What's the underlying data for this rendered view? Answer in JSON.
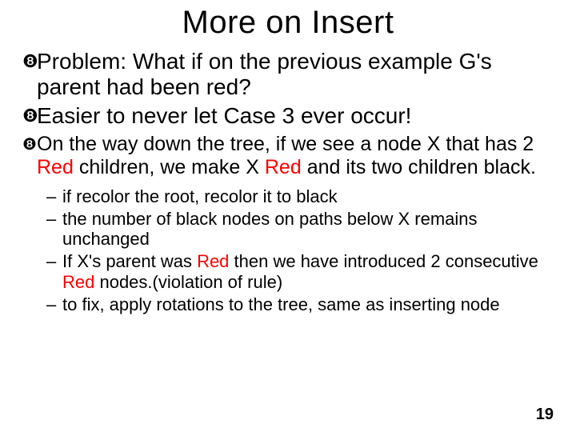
{
  "title": "More on Insert",
  "bullets_large": [
    {
      "segments": [
        {
          "t": "Problem: What if on the previous example G's parent had been red?"
        }
      ]
    },
    {
      "segments": [
        {
          "t": "Easier to never let Case 3 ever occur!"
        }
      ]
    }
  ],
  "bullet_medium": {
    "segments": [
      {
        "t": "On the way down the tree, if we see a node X that has 2 "
      },
      {
        "t": "Red",
        "red": true
      },
      {
        "t": " children, we make X "
      },
      {
        "t": "Red",
        "red": true
      },
      {
        "t": " and its two children black."
      }
    ]
  },
  "sub_bullets": [
    {
      "segments": [
        {
          "t": "if recolor the root, recolor it to black"
        }
      ]
    },
    {
      "segments": [
        {
          "t": "the number of black nodes on paths below X remains unchanged"
        }
      ]
    },
    {
      "segments": [
        {
          "t": "If X's parent was "
        },
        {
          "t": "Red",
          "red": true
        },
        {
          "t": " then we have introduced 2 consecutive "
        },
        {
          "t": "Red",
          "red": true
        },
        {
          "t": " nodes.(violation of rule)"
        }
      ]
    },
    {
      "segments": [
        {
          "t": "to fix, apply rotations to the tree, same as inserting node"
        }
      ]
    }
  ],
  "page_number": "19",
  "markers": {
    "l1": "❽",
    "l2": "–"
  },
  "colors": {
    "text": "#000000",
    "red": "#ff0000",
    "background": "#ffffff"
  },
  "font_sizes": {
    "title": 40,
    "bullet_large": 28,
    "bullet_medium": 25,
    "bullet_sub": 22,
    "page_number": 20
  }
}
